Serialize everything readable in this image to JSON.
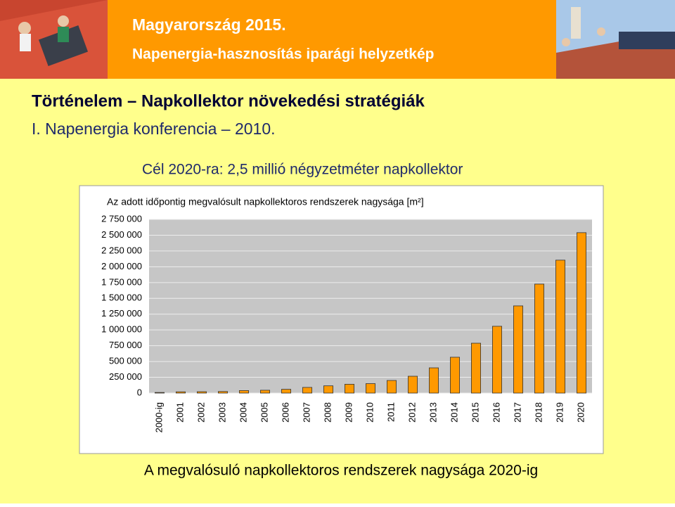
{
  "header": {
    "title": "Magyarország 2015.",
    "subtitle": "Napenergia-hasznosítás iparági helyzetkép"
  },
  "heading": "Történelem – Napkollektor növekedési stratégiák",
  "subheading": "I. Napenergia konferencia – 2010.",
  "goal": "Cél 2020-ra: 2,5 millió négyzetméter napkollektor",
  "caption": "A megvalósuló napkollektoros rendszerek nagysága 2020-ig",
  "chart_data": {
    "type": "bar",
    "title": "Az adott időpontig megvalósult napkollektoros rendszerek nagysága [m²]",
    "categories": [
      "2000-ig",
      "2001",
      "2002",
      "2003",
      "2004",
      "2005",
      "2006",
      "2007",
      "2008",
      "2009",
      "2010",
      "2011",
      "2012",
      "2013",
      "2014",
      "2015",
      "2016",
      "2017",
      "2018",
      "2019",
      "2020"
    ],
    "values": [
      10000,
      20000,
      22000,
      25000,
      40000,
      45000,
      60000,
      90000,
      115000,
      140000,
      150000,
      200000,
      267000,
      400000,
      568000,
      790000,
      1058000,
      1381000,
      1726000,
      2105000,
      2540000
    ],
    "color": "#FF9900",
    "ylim": [
      0,
      2750000
    ],
    "yticks": [
      0,
      {
        "value": 250000,
        "label": "250 000"
      },
      {
        "value": 500000,
        "label": "500 000"
      },
      {
        "value": 750000,
        "label": "750 000"
      },
      {
        "value": 1000000,
        "label": "1 000 000"
      },
      {
        "value": 1250000,
        "label": "1 250 000"
      },
      {
        "value": 1500000,
        "label": "1 500 000"
      },
      {
        "value": 1750000,
        "label": "1 750 000"
      },
      {
        "value": 2000000,
        "label": "2 000 000"
      },
      {
        "value": 2250000,
        "label": "2 250 000"
      },
      {
        "value": 2500000,
        "label": "2 500 000"
      },
      {
        "value": 2750000,
        "label": "2 750 000"
      }
    ],
    "grid": true
  }
}
